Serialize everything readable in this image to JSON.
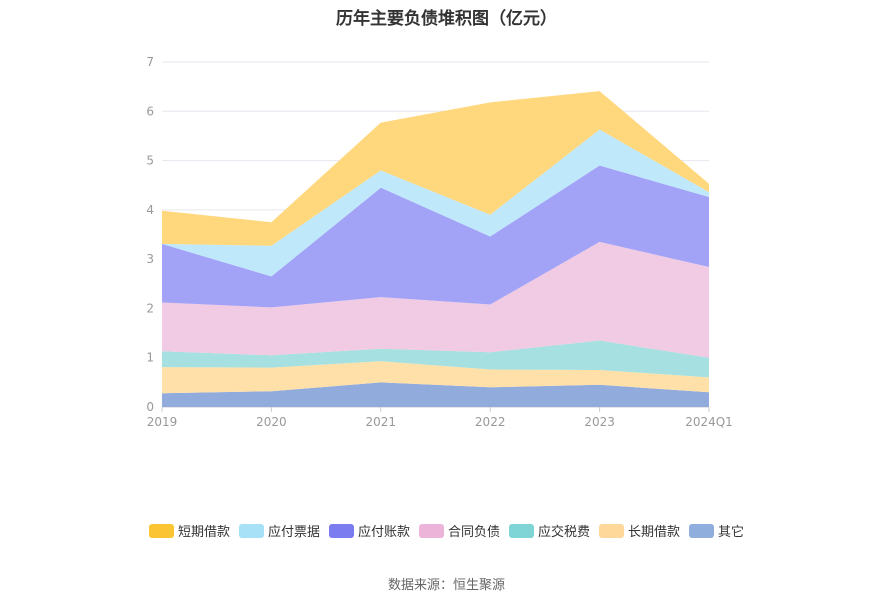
{
  "chart_data": {
    "type": "area",
    "stacked": true,
    "title": "历年主要负债堆积图（亿元）",
    "categories": [
      "2019",
      "2020",
      "2021",
      "2022",
      "2023",
      "2024Q1"
    ],
    "ylim": [
      0,
      7
    ],
    "yticks": [
      "0",
      "1",
      "2",
      "3",
      "4",
      "5",
      "6",
      "7"
    ],
    "grid": true,
    "legend_position": "bottom",
    "series": [
      {
        "name": "其它",
        "color": "#91acdc",
        "values": [
          0.28,
          0.32,
          0.5,
          0.4,
          0.45,
          0.3
        ]
      },
      {
        "name": "长期借款",
        "color": "#ffe0a8",
        "values": [
          0.53,
          0.48,
          0.43,
          0.36,
          0.3,
          0.3
        ]
      },
      {
        "name": "应交税费",
        "color": "#a6e0e0",
        "values": [
          0.32,
          0.25,
          0.25,
          0.35,
          0.6,
          0.4
        ]
      },
      {
        "name": "合同负债",
        "color": "#f0cbe3",
        "values": [
          0.99,
          0.97,
          1.05,
          0.97,
          2.0,
          1.84
        ]
      },
      {
        "name": "应付账款",
        "color": "#a2a3f7",
        "values": [
          1.19,
          0.63,
          2.22,
          1.38,
          1.55,
          1.42
        ]
      },
      {
        "name": "应付票据",
        "color": "#c0e8fb",
        "values": [
          0.0,
          0.62,
          0.35,
          0.44,
          0.73,
          0.1
        ]
      },
      {
        "name": "短期借款",
        "color": "#ffd77c",
        "values": [
          0.67,
          0.48,
          0.97,
          2.28,
          0.78,
          0.17
        ]
      }
    ]
  },
  "legend": [
    {
      "label": "短期借款",
      "color": "#fbc433"
    },
    {
      "label": "应付票据",
      "color": "#a6e1f8"
    },
    {
      "label": "应付账款",
      "color": "#7a7cf0"
    },
    {
      "label": "合同负债",
      "color": "#ecb4d9"
    },
    {
      "label": "应交税费",
      "color": "#7fd5d5"
    },
    {
      "label": "长期借款",
      "color": "#fdd89a"
    },
    {
      "label": "其它",
      "color": "#8faedd"
    }
  ],
  "source": "数据来源：恒生聚源"
}
